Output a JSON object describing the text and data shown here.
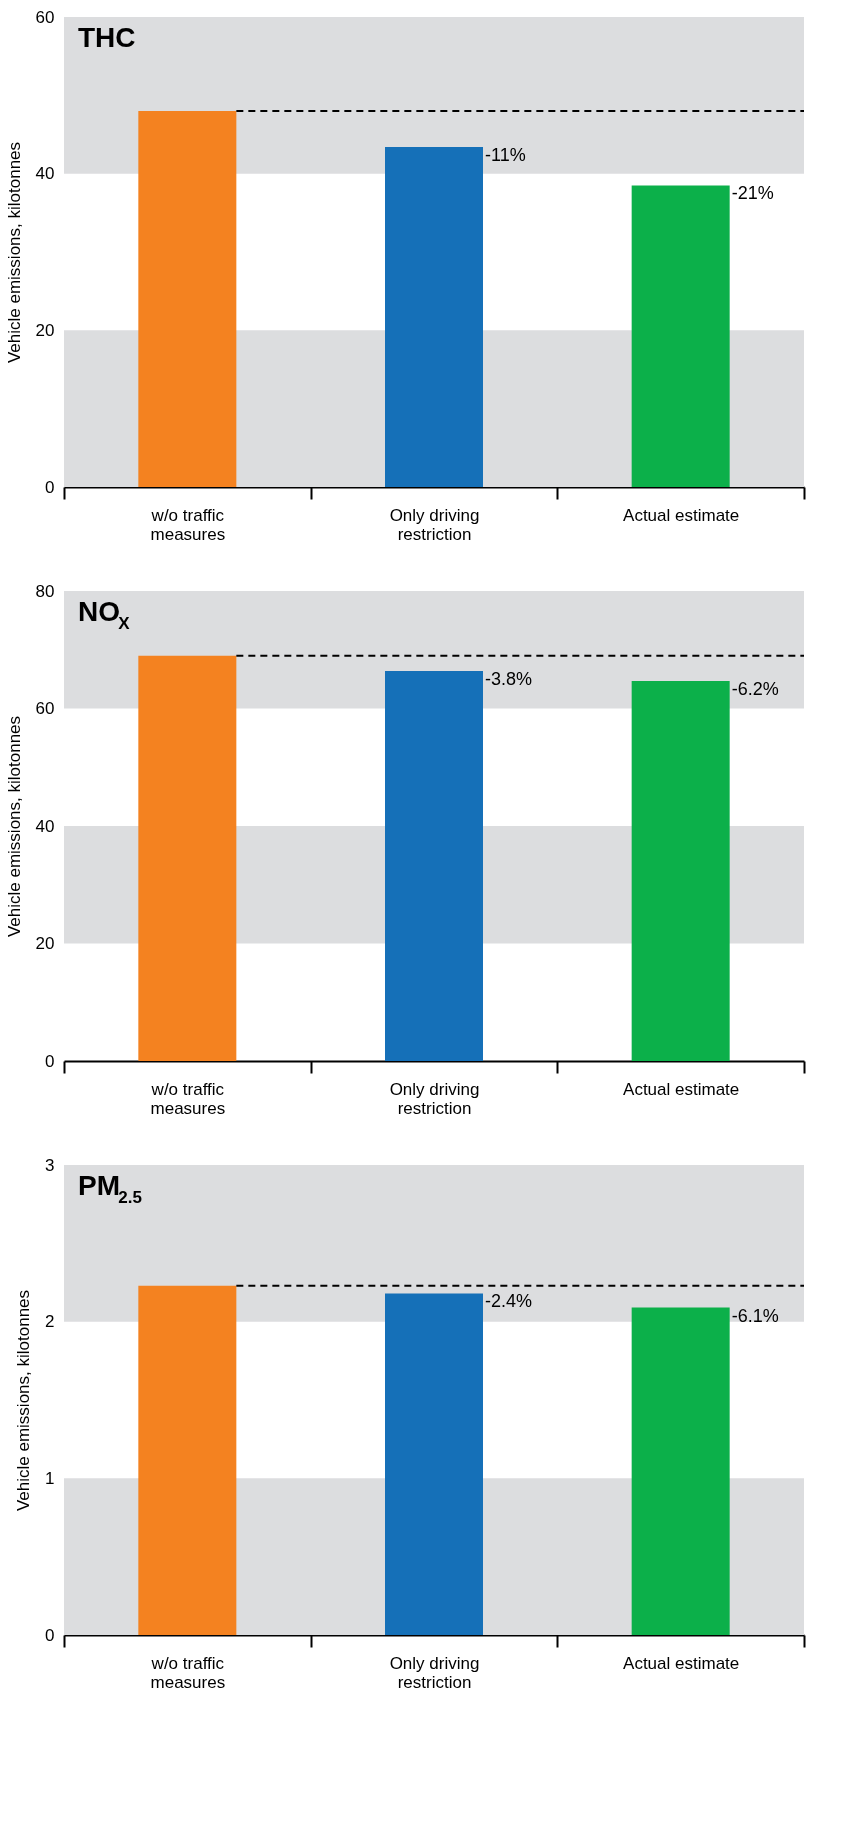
{
  "chart_data": [
    {
      "type": "bar",
      "title": "THC",
      "ylabel": "Vehicle emissions, kilotonnes",
      "categories": [
        "w/o traffic measures",
        "Only driving restriction",
        "Actual estimate"
      ],
      "values": [
        48,
        43.4,
        38.5
      ],
      "colors": [
        "#f48220",
        "#1570b8",
        "#0cb04a"
      ],
      "ylim": [
        0,
        60
      ],
      "yticks": [
        0,
        20,
        40,
        60
      ],
      "grid": false,
      "bands": [
        {
          "axis": "y",
          "from": 0,
          "to": 20,
          "color": "#dcdddf"
        },
        {
          "axis": "y",
          "from": 40,
          "to": 60,
          "color": "#dcdddf"
        }
      ],
      "ref_lines": [
        {
          "axis": "y",
          "value": 48,
          "line_style": "dashed",
          "color": "#000000"
        }
      ],
      "annotations": [
        {
          "text": "-11%",
          "x": "Only driving restriction",
          "y": 43.4
        },
        {
          "text": "-21%",
          "x": "Actual estimate",
          "y": 38.5
        }
      ]
    },
    {
      "type": "bar",
      "title": "NO$_{X}$",
      "ylabel": "Vehicle emissions, kilotonnes",
      "categories": [
        "w/o traffic measures",
        "Only driving restriction",
        "Actual estimate"
      ],
      "values": [
        69,
        66.4,
        64.7
      ],
      "colors": [
        "#f48220",
        "#1570b8",
        "#0cb04a"
      ],
      "ylim": [
        0,
        80
      ],
      "yticks": [
        0,
        20,
        40,
        60,
        80
      ],
      "grid": false,
      "bands": [
        {
          "axis": "y",
          "from": 20,
          "to": 40,
          "color": "#dcdddf"
        },
        {
          "axis": "y",
          "from": 60,
          "to": 80,
          "color": "#dcdddf"
        }
      ],
      "ref_lines": [
        {
          "axis": "y",
          "value": 69,
          "line_style": "dashed",
          "color": "#000000"
        }
      ],
      "annotations": [
        {
          "text": "-3.8%",
          "x": "Only driving restriction",
          "y": 66.4
        },
        {
          "text": "-6.2%",
          "x": "Actual estimate",
          "y": 64.7
        }
      ]
    },
    {
      "type": "bar",
      "title": "PM$_{2.5}$",
      "ylabel": "Vehicle emissions, kilotonnes",
      "categories": [
        "w/o traffic measures",
        "Only driving restriction",
        "Actual estimate"
      ],
      "values": [
        2.23,
        2.18,
        2.09
      ],
      "colors": [
        "#f48220",
        "#1570b8",
        "#0cb04a"
      ],
      "ylim": [
        0,
        3
      ],
      "yticks": [
        0,
        1,
        2,
        3
      ],
      "grid": false,
      "bands": [
        {
          "axis": "y",
          "from": 0,
          "to": 1,
          "color": "#dcdddf"
        },
        {
          "axis": "y",
          "from": 2,
          "to": 3,
          "color": "#dcdddf"
        }
      ],
      "ref_lines": [
        {
          "axis": "y",
          "value": 2.23,
          "line_style": "dashed",
          "color": "#000000"
        }
      ],
      "annotations": [
        {
          "text": "-2.4%",
          "x": "Only driving restriction",
          "y": 2.18
        },
        {
          "text": "-6.1%",
          "x": "Actual estimate",
          "y": 2.09
        }
      ]
    }
  ]
}
